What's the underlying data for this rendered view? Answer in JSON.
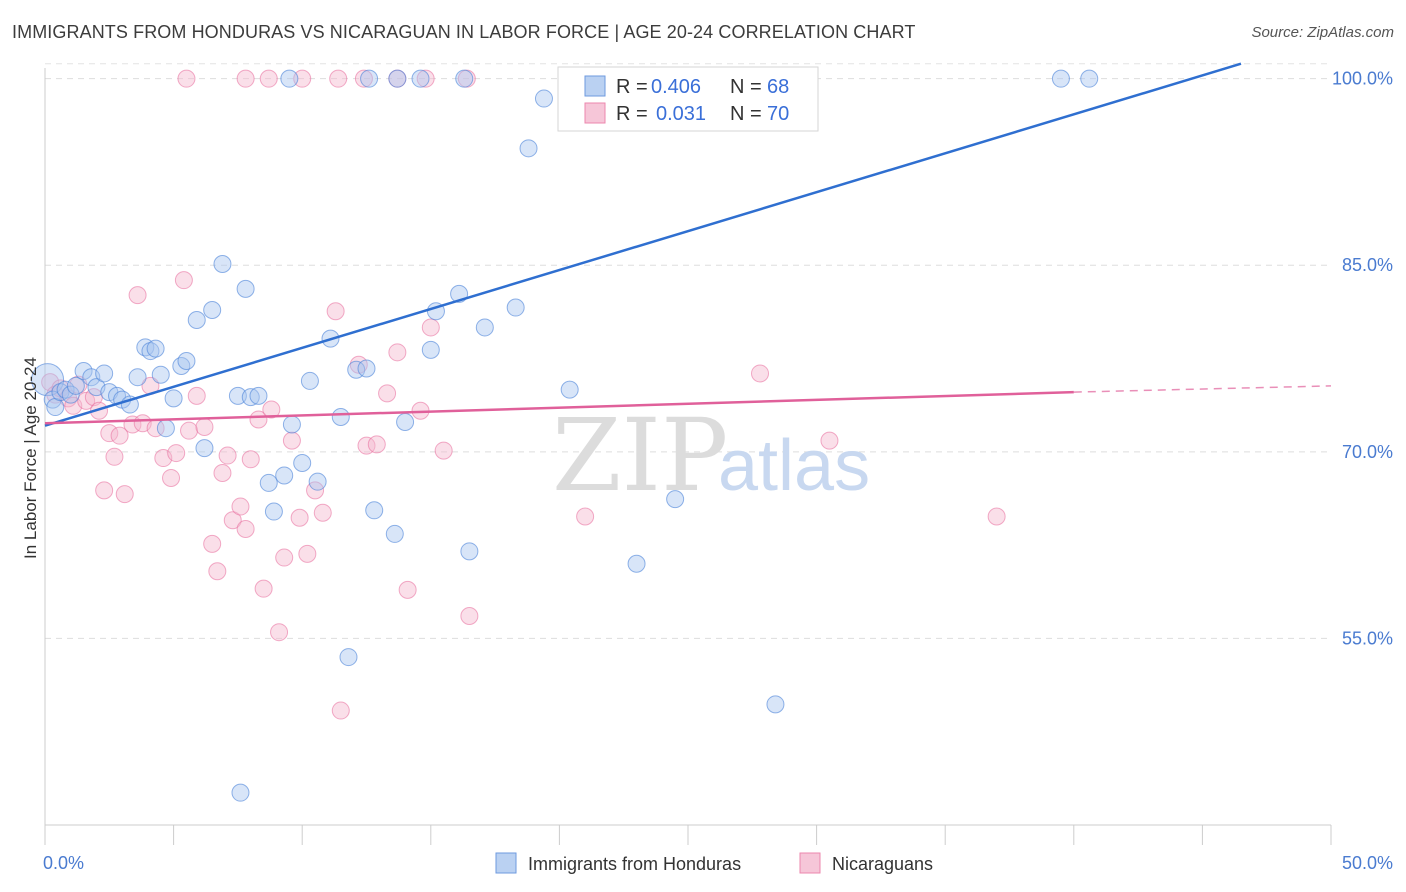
{
  "title": "IMMIGRANTS FROM HONDURAS VS NICARAGUAN IN LABOR FORCE | AGE 20-24 CORRELATION CHART",
  "source": "Source: ZipAtlas.com",
  "watermark": {
    "zip": "ZIP",
    "atlas": "atlas"
  },
  "colors": {
    "blue": "#4a82d8",
    "blue_fill": "#a9c6f0",
    "pink": "#e86a9a",
    "pink_fill": "#f5b9cf",
    "tick_label": "#4a7bd0"
  },
  "legend": {
    "entries": [
      {
        "r_label": "R = ",
        "r_value": "0.406",
        "n_label": "N = ",
        "n_value": "68"
      },
      {
        "r_label": "R = ",
        "r_value": "0.031",
        "n_label": "N = ",
        "n_value": "70"
      }
    ]
  },
  "chart_data": {
    "type": "scatter",
    "title": "IMMIGRANTS FROM HONDURAS VS NICARAGUAN IN LABOR FORCE | AGE 20-24 CORRELATION CHART",
    "xlabel": "",
    "ylabel": "In Labor Force | Age 20-24",
    "xlim": [
      0,
      50
    ],
    "ylim": [
      40,
      101.5
    ],
    "x_tick_labels": [
      "0.0%",
      "50.0%"
    ],
    "y_ticks": [
      55,
      70,
      85,
      100
    ],
    "y_tick_labels": [
      "55.0%",
      "70.0%",
      "85.0%",
      "100.0%"
    ],
    "grid": true,
    "legend_position": "top-center",
    "series": [
      {
        "name": "Immigrants from Honduras",
        "color": "#4a82d8",
        "trend": {
          "x": [
            0,
            46.5
          ],
          "y": [
            72.1,
            101.2
          ]
        },
        "points": [
          [
            0.1,
            75.8
          ],
          [
            0.3,
            74.2
          ],
          [
            0.4,
            73.6
          ],
          [
            0.6,
            74.8
          ],
          [
            0.8,
            75.0
          ],
          [
            1.0,
            74.6
          ],
          [
            1.2,
            75.3
          ],
          [
            1.5,
            76.5
          ],
          [
            1.8,
            76.0
          ],
          [
            2.0,
            75.2
          ],
          [
            2.3,
            76.3
          ],
          [
            2.5,
            74.8
          ],
          [
            2.8,
            74.5
          ],
          [
            3.0,
            74.2
          ],
          [
            3.3,
            73.8
          ],
          [
            3.6,
            76.0
          ],
          [
            3.9,
            78.4
          ],
          [
            4.1,
            78.1
          ],
          [
            4.3,
            78.3
          ],
          [
            4.5,
            76.2
          ],
          [
            4.7,
            71.9
          ],
          [
            5.0,
            74.3
          ],
          [
            5.3,
            76.9
          ],
          [
            5.5,
            77.3
          ],
          [
            5.9,
            80.6
          ],
          [
            6.2,
            70.3
          ],
          [
            6.5,
            81.4
          ],
          [
            6.9,
            85.1
          ],
          [
            7.5,
            74.5
          ],
          [
            7.8,
            83.1
          ],
          [
            8.0,
            74.4
          ],
          [
            8.3,
            74.5
          ],
          [
            8.7,
            67.5
          ],
          [
            8.9,
            65.2
          ],
          [
            9.3,
            68.1
          ],
          [
            9.6,
            72.2
          ],
          [
            10.0,
            69.1
          ],
          [
            10.3,
            75.7
          ],
          [
            10.6,
            67.6
          ],
          [
            11.1,
            79.1
          ],
          [
            11.5,
            72.8
          ],
          [
            11.8,
            53.5
          ],
          [
            12.1,
            76.6
          ],
          [
            12.5,
            76.7
          ],
          [
            12.8,
            65.3
          ],
          [
            13.6,
            63.4
          ],
          [
            14.0,
            72.4
          ],
          [
            15.0,
            78.2
          ],
          [
            15.2,
            81.3
          ],
          [
            16.1,
            82.7
          ],
          [
            16.5,
            62.0
          ],
          [
            17.1,
            80.0
          ],
          [
            18.3,
            81.6
          ],
          [
            18.8,
            94.4
          ],
          [
            19.4,
            98.4
          ],
          [
            20.4,
            75.0
          ],
          [
            23.0,
            61.0
          ],
          [
            24.5,
            66.2
          ],
          [
            28.4,
            49.7
          ],
          [
            7.6,
            42.6
          ],
          [
            9.5,
            100.0
          ],
          [
            12.6,
            100.0
          ],
          [
            13.7,
            100.0
          ],
          [
            14.6,
            100.0
          ],
          [
            16.3,
            100.0
          ],
          [
            20.6,
            100.0
          ],
          [
            39.5,
            100.0
          ],
          [
            40.6,
            100.0
          ]
        ]
      },
      {
        "name": "Nicaraguans",
        "color": "#e86a9a",
        "trend": {
          "x": [
            0,
            40
          ],
          "y": [
            72.3,
            74.8
          ],
          "dashed_to": [
            50,
            75.3
          ]
        },
        "points": [
          [
            0.2,
            75.6
          ],
          [
            0.4,
            74.6
          ],
          [
            0.6,
            75.1
          ],
          [
            0.9,
            74.3
          ],
          [
            1.1,
            73.7
          ],
          [
            1.3,
            75.4
          ],
          [
            1.6,
            74.1
          ],
          [
            1.9,
            74.4
          ],
          [
            2.1,
            73.3
          ],
          [
            2.3,
            66.9
          ],
          [
            2.5,
            71.5
          ],
          [
            2.7,
            69.6
          ],
          [
            2.9,
            71.3
          ],
          [
            3.1,
            66.6
          ],
          [
            3.4,
            72.2
          ],
          [
            3.6,
            82.6
          ],
          [
            3.8,
            72.3
          ],
          [
            4.1,
            75.3
          ],
          [
            4.3,
            71.9
          ],
          [
            4.6,
            69.5
          ],
          [
            4.9,
            67.9
          ],
          [
            5.1,
            69.9
          ],
          [
            5.4,
            83.8
          ],
          [
            5.6,
            71.7
          ],
          [
            5.9,
            74.5
          ],
          [
            6.2,
            72.0
          ],
          [
            6.5,
            62.6
          ],
          [
            6.7,
            60.4
          ],
          [
            6.9,
            68.3
          ],
          [
            7.1,
            69.7
          ],
          [
            7.3,
            64.5
          ],
          [
            7.6,
            65.6
          ],
          [
            7.8,
            63.8
          ],
          [
            8.0,
            69.4
          ],
          [
            8.3,
            72.6
          ],
          [
            8.5,
            59.0
          ],
          [
            8.8,
            73.4
          ],
          [
            9.1,
            55.5
          ],
          [
            9.3,
            61.5
          ],
          [
            9.6,
            70.9
          ],
          [
            9.9,
            64.7
          ],
          [
            10.2,
            61.8
          ],
          [
            10.5,
            66.9
          ],
          [
            10.8,
            65.1
          ],
          [
            11.3,
            81.3
          ],
          [
            11.5,
            49.2
          ],
          [
            12.2,
            77.0
          ],
          [
            12.5,
            70.5
          ],
          [
            12.9,
            70.6
          ],
          [
            13.3,
            74.7
          ],
          [
            13.7,
            78.0
          ],
          [
            14.1,
            58.9
          ],
          [
            14.6,
            73.3
          ],
          [
            15.0,
            80.0
          ],
          [
            15.5,
            70.1
          ],
          [
            16.5,
            56.8
          ],
          [
            21.0,
            64.8
          ],
          [
            27.8,
            76.3
          ],
          [
            30.5,
            70.9
          ],
          [
            37.0,
            64.8
          ],
          [
            5.5,
            100.0
          ],
          [
            7.8,
            100.0
          ],
          [
            8.7,
            100.0
          ],
          [
            10.0,
            100.0
          ],
          [
            11.4,
            100.0
          ],
          [
            12.4,
            100.0
          ],
          [
            13.7,
            100.0
          ],
          [
            14.8,
            100.0
          ],
          [
            16.4,
            100.0
          ],
          [
            22.2,
            100.0
          ]
        ]
      }
    ]
  },
  "bottom_legend": [
    "Immigrants from Honduras",
    "Nicaraguans"
  ]
}
